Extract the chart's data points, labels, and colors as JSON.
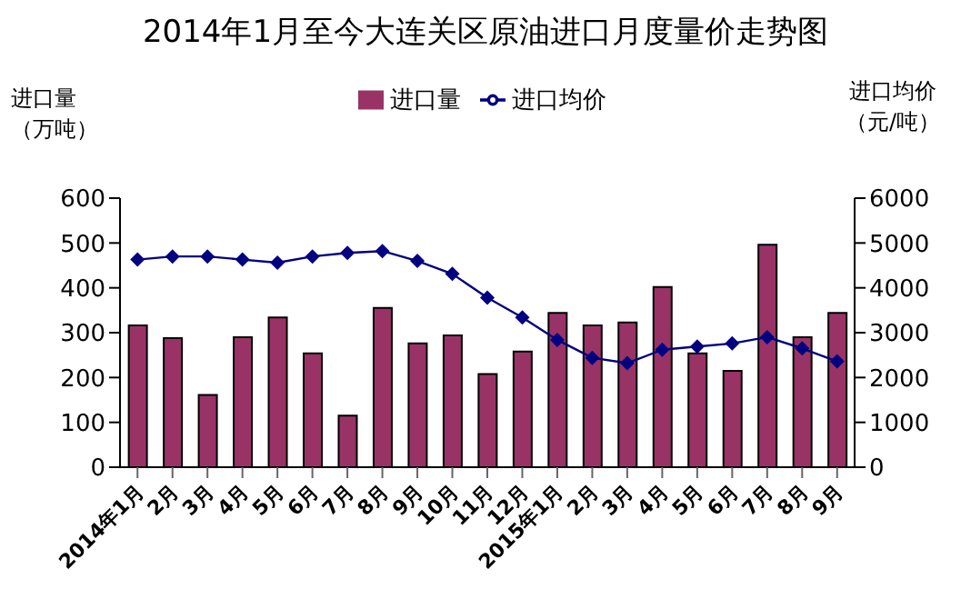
{
  "chart_data": {
    "type": "bar",
    "title": "2014年1月至今大连关区原油进口月度量价走势图",
    "ylabel": "进口量（万吨）",
    "y2label": "进口均价（元/吨）",
    "categories": [
      "2014年1月",
      "2月",
      "3月",
      "4月",
      "5月",
      "6月",
      "7月",
      "8月",
      "9月",
      "10月",
      "11月",
      "12月",
      "2015年1月",
      "2月",
      "3月",
      "4月",
      "5月",
      "6月",
      "7月",
      "8月",
      "9月"
    ],
    "series": [
      {
        "name": "进口量",
        "color": "#993366",
        "values": [
          316,
          288,
          161,
          290,
          334,
          254,
          115,
          355,
          276,
          294,
          208,
          258,
          344,
          316,
          323,
          402,
          254,
          215,
          496,
          290,
          344
        ]
      },
      {
        "name": "进口均价",
        "type": "line",
        "axis": "y2",
        "color": "#000080",
        "values": [
          4630,
          4700,
          4700,
          4630,
          4560,
          4700,
          4780,
          4820,
          4600,
          4310,
          3780,
          3340,
          2840,
          2440,
          2320,
          2620,
          2690,
          2760,
          2900,
          2650,
          2360
        ]
      }
    ],
    "ylim": [
      0,
      600
    ],
    "yticks": [
      0,
      100,
      200,
      300,
      400,
      500,
      600
    ],
    "y2lim": [
      0,
      6000
    ],
    "y2ticks": [
      0,
      1000,
      2000,
      3000,
      4000,
      5000,
      6000
    ],
    "legend": "top",
    "grid": false,
    "marker": "diamond",
    "line_style": "solid"
  }
}
